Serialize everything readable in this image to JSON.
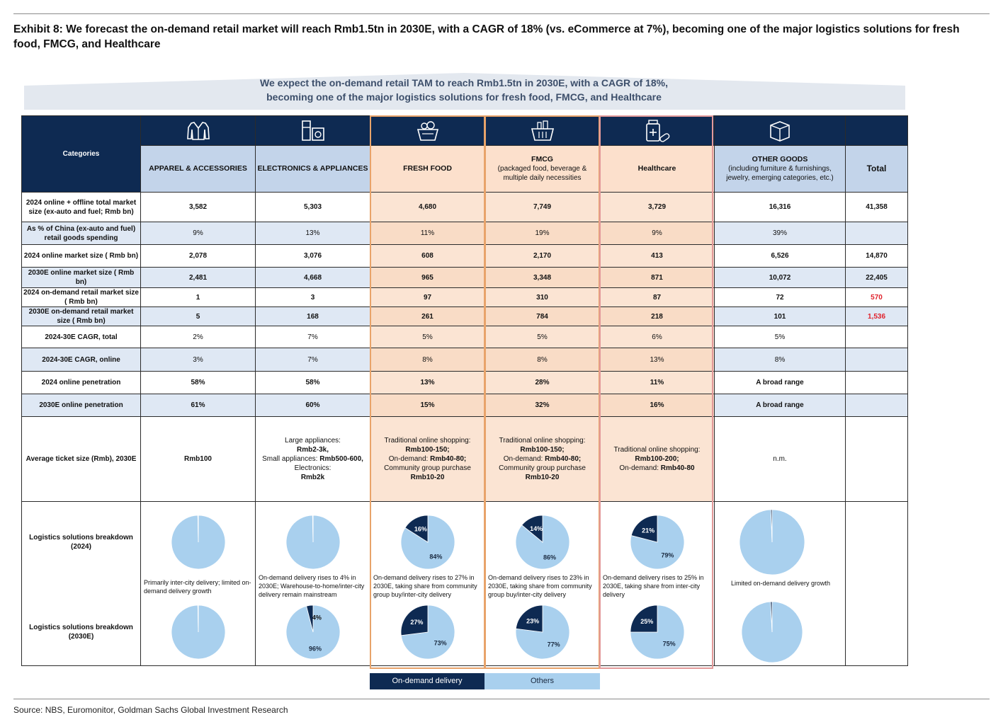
{
  "exhibit_title": "Exhibit 8: We forecast the on-demand retail market will reach Rmb1.5tn in 2030E, with a CAGR of 18% (vs. eCommerce at 7%), becoming one of the major logistics solutions for fresh food, FMCG, and Healthcare",
  "banner": {
    "line1": "We expect the on-demand retail TAM to reach Rmb1.5tn in 2030E, with a CAGR of 18%,",
    "line2": "becoming one of the major logistics solutions for fresh food, FMCG, and Healthcare"
  },
  "header": {
    "categories_label": "Categories",
    "total_label": "Total",
    "columns": [
      {
        "name": "APPAREL & ACCESSORIES",
        "sub": "",
        "icon": "jacket-icon"
      },
      {
        "name": "ELECTRONICS & APPLIANCES",
        "sub": "",
        "icon": "appliances-icon"
      },
      {
        "name": "FRESH FOOD",
        "sub": "",
        "icon": "food-basket-icon"
      },
      {
        "name": "FMCG",
        "sub": "(packaged food, beverage & multiple daily necessities",
        "icon": "shopping-basket-icon"
      },
      {
        "name": "Healthcare",
        "sub": "",
        "icon": "medicine-icon"
      },
      {
        "name": "OTHER GOODS",
        "sub": "(including furniture & furnishings, jewelry, emerging categories, etc.)",
        "icon": "box-icon"
      }
    ]
  },
  "rows": [
    {
      "label": "2024 online + offline total market size (ex-auto and fuel; Rmb bn)",
      "values": [
        "3,582",
        "5,303",
        "4,680",
        "7,749",
        "3,729",
        "16,316"
      ],
      "total": "41,358"
    },
    {
      "label": "As % of China (ex-auto and fuel) retail goods spending",
      "values": [
        "9%",
        "13%",
        "11%",
        "19%",
        "9%",
        "39%"
      ],
      "total": ""
    },
    {
      "label": "2024 online market size ( Rmb bn)",
      "values": [
        "2,078",
        "3,076",
        "608",
        "2,170",
        "413",
        "6,526"
      ],
      "total": "14,870"
    },
    {
      "label": "2030E online market size ( Rmb bn)",
      "values": [
        "2,481",
        "4,668",
        "965",
        "3,348",
        "871",
        "10,072"
      ],
      "total": "22,405"
    },
    {
      "label": "2024 on-demand retail market size ( Rmb bn)",
      "values": [
        "1",
        "3",
        "97",
        "310",
        "87",
        "72"
      ],
      "total": "570"
    },
    {
      "label": "2030E on-demand retail market size ( Rmb bn)",
      "values": [
        "5",
        "168",
        "261",
        "784",
        "218",
        "101"
      ],
      "total": "1,536"
    },
    {
      "label": "2024-30E CAGR, total",
      "values": [
        "2%",
        "7%",
        "5%",
        "5%",
        "6%",
        "5%"
      ],
      "total": ""
    },
    {
      "label": "2024-30E CAGR, online",
      "values": [
        "3%",
        "7%",
        "8%",
        "8%",
        "13%",
        "8%"
      ],
      "total": ""
    },
    {
      "label": "2024 online penetration",
      "values": [
        "58%",
        "58%",
        "13%",
        "28%",
        "11%",
        "A broad range"
      ],
      "total": ""
    },
    {
      "label": "2030E online penetration",
      "values": [
        "61%",
        "60%",
        "15%",
        "32%",
        "16%",
        "A broad range"
      ],
      "total": ""
    }
  ],
  "ticket": {
    "label": "Average ticket size (Rmb), 2030E",
    "apparel": "Rmb100",
    "electronics": {
      "l1": "Large appliances:",
      "l2": "Rmb2-3k,",
      "l3a": "Small appliances: ",
      "l3b": "Rmb500-600,",
      "l4": "Electronics:",
      "l5": "Rmb2k"
    },
    "fresh": {
      "l1": "Traditional online shopping:",
      "l2": "Rmb100-150;",
      "l3a": "On-demand: ",
      "l3b": "Rmb40-80;",
      "l4": "Community group purchase",
      "l5": "Rmb10-20"
    },
    "fmcg": {
      "l1": "Traditional online shopping:",
      "l2": "Rmb100-150;",
      "l3a": "On-demand: ",
      "l3b": "Rmb40-80;",
      "l4": "Community group purchase",
      "l5": "Rmb10-20"
    },
    "health": {
      "l1": "Traditional online shopping:",
      "l2": "Rmb100-200;",
      "l3a": "On-demand: ",
      "l3b": "Rmb40-80"
    },
    "other": "n.m."
  },
  "logistics": {
    "label_2024": "Logistics solutions breakdown (2024)",
    "label_2030": "Logistics solutions breakdown (2030E)",
    "notes": [
      "Primarily inter-city delivery; limited on-demand delivery growth",
      "On-demand delivery rises to 4% in 2030E; Warehouse-to-home/inter-city delivery remain mainstream",
      "On-demand delivery rises to 27% in 2030E, taking share from community group buy/inter-city delivery",
      "On-demand delivery rises to 23% in 2030E, taking share from community group buy/inter-city delivery",
      "On-demand delivery rises to 25% in 2030E, taking share from inter-city delivery",
      "Limited on-demand delivery growth"
    ]
  },
  "chart_data": {
    "type": "pie",
    "title": "Logistics solutions breakdown",
    "legend": [
      "On-demand delivery",
      "Others"
    ],
    "colors": {
      "on_demand": "#0e2a52",
      "others": "#a9d0ee"
    },
    "pies_2024": [
      {
        "category": "APPAREL & ACCESSORIES",
        "on_demand": 0.3,
        "others": 99.7,
        "label_on": "",
        "label_other": ""
      },
      {
        "category": "ELECTRONICS & APPLIANCES",
        "on_demand": 0.3,
        "others": 99.7,
        "label_on": "",
        "label_other": ""
      },
      {
        "category": "FRESH FOOD",
        "on_demand": 16,
        "others": 84,
        "label_on": "16%",
        "label_other": "84%"
      },
      {
        "category": "FMCG",
        "on_demand": 14,
        "others": 86,
        "label_on": "14%",
        "label_other": "86%"
      },
      {
        "category": "Healthcare",
        "on_demand": 21,
        "others": 79,
        "label_on": "21%",
        "label_other": "79%"
      },
      {
        "category": "OTHER GOODS",
        "on_demand": 0.6,
        "others": 99.4,
        "label_on": "",
        "label_other": ""
      }
    ],
    "pies_2030": [
      {
        "category": "APPAREL & ACCESSORIES",
        "on_demand": 0.3,
        "others": 99.7,
        "label_on": "",
        "label_other": ""
      },
      {
        "category": "ELECTRONICS & APPLIANCES",
        "on_demand": 4,
        "others": 96,
        "label_on": "4%",
        "label_other": "96%"
      },
      {
        "category": "FRESH FOOD",
        "on_demand": 27,
        "others": 73,
        "label_on": "27%",
        "label_other": "73%"
      },
      {
        "category": "FMCG",
        "on_demand": 23,
        "others": 77,
        "label_on": "23%",
        "label_other": "77%"
      },
      {
        "category": "Healthcare",
        "on_demand": 25,
        "others": 75,
        "label_on": "25%",
        "label_other": "75%"
      },
      {
        "category": "OTHER GOODS",
        "on_demand": 0.8,
        "others": 99.2,
        "label_on": "",
        "label_other": ""
      }
    ]
  },
  "legend": {
    "on_demand": "On-demand delivery",
    "others": "Others"
  },
  "source": "Source: NBS, Euromonitor, Goldman Sachs Global Investment Research"
}
